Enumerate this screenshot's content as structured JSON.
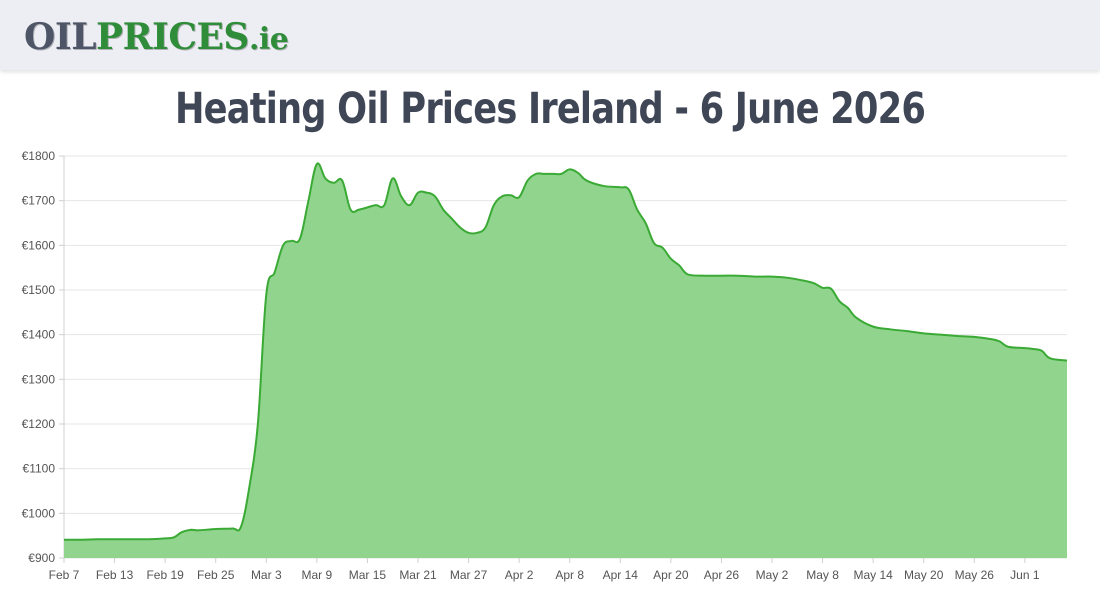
{
  "header": {
    "logo_part1": "OIL",
    "logo_part2": "PRICES",
    "logo_part3": ".ie"
  },
  "chart_data": {
    "type": "area",
    "title": "Heating Oil Prices Ireland - 6 June 2026",
    "xlabel": "",
    "ylabel": "",
    "ylim": [
      900,
      1800
    ],
    "grid": true,
    "legend": "none",
    "colors": {
      "line": "#3aaa35",
      "fill": "#90d48e"
    },
    "y_ticks": [
      "€900",
      "€1000",
      "€1100",
      "€1200",
      "€1300",
      "€1400",
      "€1500",
      "€1600",
      "€1700",
      "€1800"
    ],
    "y_tick_values": [
      900,
      1000,
      1100,
      1200,
      1300,
      1400,
      1500,
      1600,
      1700,
      1800
    ],
    "x_ticks": [
      "Feb 7",
      "Feb 13",
      "Feb 19",
      "Feb 25",
      "Mar 3",
      "Mar 9",
      "Mar 15",
      "Mar 21",
      "Mar 27",
      "Apr 2",
      "Apr 8",
      "Apr 14",
      "Apr 20",
      "Apr 26",
      "May 2",
      "May 8",
      "May 14",
      "May 20",
      "May 26",
      "Jun 1"
    ],
    "x_range": [
      "Feb 7",
      "Jun 6"
    ],
    "series": [
      {
        "values": [
          [
            "Feb 7",
            941
          ],
          [
            "Feb 9",
            941
          ],
          [
            "Feb 11",
            942
          ],
          [
            "Feb 13",
            942
          ],
          [
            "Feb 15",
            942
          ],
          [
            "Feb 17",
            942
          ],
          [
            "Feb 19",
            944
          ],
          [
            "Feb 20",
            946
          ],
          [
            "Feb 21",
            958
          ],
          [
            "Feb 22",
            963
          ],
          [
            "Feb 23",
            962
          ],
          [
            "Feb 25",
            965
          ],
          [
            "Feb 27",
            966
          ],
          [
            "Feb 28",
            970
          ],
          [
            "Mar 1",
            1060
          ],
          [
            "Mar 2",
            1200
          ],
          [
            "Mar 3",
            1490
          ],
          [
            "Mar 4",
            1540
          ],
          [
            "Mar 5",
            1600
          ],
          [
            "Mar 6",
            1610
          ],
          [
            "Mar 7",
            1615
          ],
          [
            "Mar 8",
            1700
          ],
          [
            "Mar 9",
            1782
          ],
          [
            "Mar 10",
            1750
          ],
          [
            "Mar 11",
            1740
          ],
          [
            "Mar 12",
            1745
          ],
          [
            "Mar 13",
            1680
          ],
          [
            "Mar 14",
            1680
          ],
          [
            "Mar 15",
            1685
          ],
          [
            "Mar 16",
            1690
          ],
          [
            "Mar 17",
            1690
          ],
          [
            "Mar 18",
            1750
          ],
          [
            "Mar 19",
            1710
          ],
          [
            "Mar 20",
            1690
          ],
          [
            "Mar 21",
            1718
          ],
          [
            "Mar 22",
            1718
          ],
          [
            "Mar 23",
            1710
          ],
          [
            "Mar 24",
            1680
          ],
          [
            "Mar 25",
            1660
          ],
          [
            "Mar 26",
            1640
          ],
          [
            "Mar 27",
            1628
          ],
          [
            "Mar 28",
            1628
          ],
          [
            "Mar 29",
            1640
          ],
          [
            "Mar 30",
            1690
          ],
          [
            "Mar 31",
            1710
          ],
          [
            "Apr 1",
            1712
          ],
          [
            "Apr 2",
            1708
          ],
          [
            "Apr 3",
            1745
          ],
          [
            "Apr 4",
            1760
          ],
          [
            "Apr 5",
            1760
          ],
          [
            "Apr 6",
            1760
          ],
          [
            "Apr 7",
            1760
          ],
          [
            "Apr 8",
            1770
          ],
          [
            "Apr 9",
            1762
          ],
          [
            "Apr 10",
            1745
          ],
          [
            "Apr 12",
            1733
          ],
          [
            "Apr 14",
            1730
          ],
          [
            "Apr 15",
            1725
          ],
          [
            "Apr 16",
            1680
          ],
          [
            "Apr 17",
            1650
          ],
          [
            "Apr 18",
            1605
          ],
          [
            "Apr 19",
            1595
          ],
          [
            "Apr 20",
            1570
          ],
          [
            "Apr 21",
            1555
          ],
          [
            "Apr 22",
            1535
          ],
          [
            "Apr 24",
            1532
          ],
          [
            "Apr 26",
            1532
          ],
          [
            "Apr 28",
            1532
          ],
          [
            "Apr 30",
            1530
          ],
          [
            "May 2",
            1530
          ],
          [
            "May 4",
            1527
          ],
          [
            "May 6",
            1520
          ],
          [
            "May 7",
            1515
          ],
          [
            "May 8",
            1505
          ],
          [
            "May 9",
            1503
          ],
          [
            "May 10",
            1475
          ],
          [
            "May 11",
            1460
          ],
          [
            "May 12",
            1438
          ],
          [
            "May 14",
            1418
          ],
          [
            "May 16",
            1412
          ],
          [
            "May 18",
            1408
          ],
          [
            "May 20",
            1403
          ],
          [
            "May 22",
            1400
          ],
          [
            "May 24",
            1397
          ],
          [
            "May 26",
            1395
          ],
          [
            "May 28",
            1390
          ],
          [
            "May 29",
            1385
          ],
          [
            "May 30",
            1373
          ],
          [
            "Jun 1",
            1370
          ],
          [
            "Jun 2",
            1368
          ],
          [
            "Jun 3",
            1364
          ],
          [
            "Jun 4",
            1347
          ],
          [
            "Jun 6",
            1342
          ]
        ]
      }
    ]
  }
}
